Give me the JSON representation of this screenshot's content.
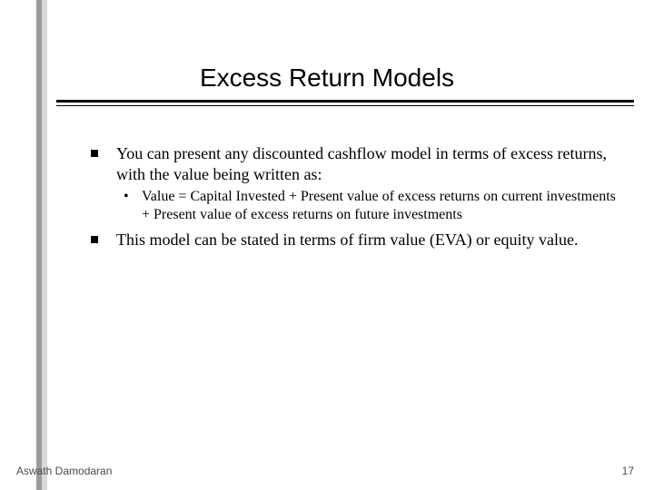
{
  "title": "Excess Return Models",
  "bullets": {
    "b1": "You can present any discounted cashflow model in terms of excess returns, with the value being written as:",
    "b1_sub1": "Value = Capital Invested + Present value of excess returns on current investments + Present value of excess returns on future investments",
    "b2": "This model can be stated in terms of firm value (EVA) or equity value."
  },
  "footer": {
    "author": "Aswath Damodaran",
    "page": "17"
  },
  "style": {
    "bg": "#ffffff",
    "title_font": "Arial",
    "title_fontsize": 28,
    "body_font": "Times New Roman",
    "body_fontsize": 18,
    "sub_fontsize": 16,
    "footer_fontsize": 12,
    "bullet_square_color": "#000000",
    "rule_color": "#000000",
    "left_rail_dark": "#9a9a9a",
    "left_rail_light": "#d9d9d9",
    "footer_color": "#4a4a4a"
  }
}
